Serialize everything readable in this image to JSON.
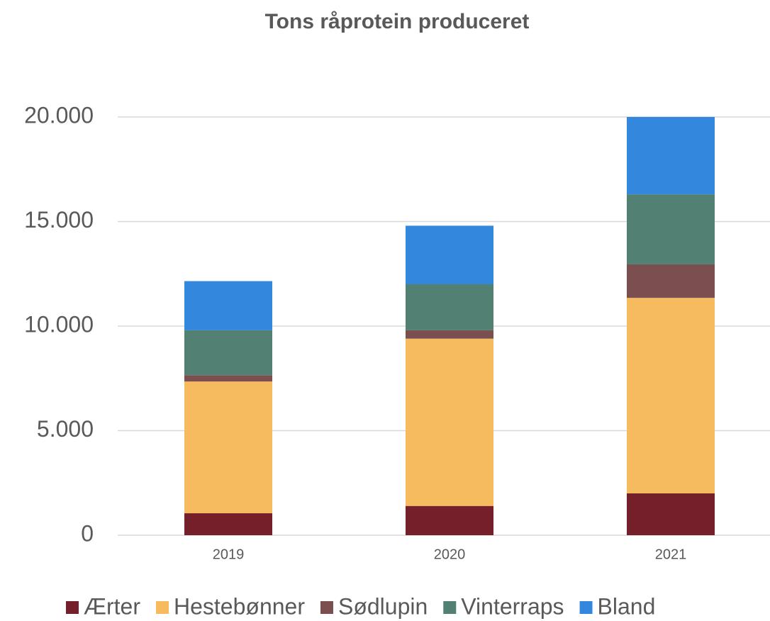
{
  "chart_data": {
    "type": "stacked_bar",
    "title": "Tons råprotein produceret",
    "categories": [
      "2019",
      "2020",
      "2021"
    ],
    "series": [
      {
        "name": "Ærter",
        "color": "#741f2a",
        "values": [
          1050,
          1400,
          2000
        ]
      },
      {
        "name": "Hestebønner",
        "color": "#f7bb5f",
        "values": [
          6300,
          8000,
          9350
        ]
      },
      {
        "name": "Sødlupin",
        "color": "#7b4f50",
        "values": [
          300,
          400,
          1600
        ]
      },
      {
        "name": "Vinterraps",
        "color": "#528174",
        "values": [
          2150,
          2200,
          3350
        ]
      },
      {
        "name": "Bland",
        "color": "#3388dd",
        "values": [
          2350,
          2800,
          3700
        ]
      }
    ],
    "ylim": [
      0,
      20000
    ],
    "yticks": [
      0,
      {
        "value": 5000,
        "label": "5.000"
      },
      {
        "value": 10000,
        "label": "10.000"
      },
      {
        "value": 15000,
        "label": "15.000"
      },
      {
        "value": 20000,
        "label": "20.000"
      }
    ],
    "grid": true,
    "legend": "bottom"
  }
}
